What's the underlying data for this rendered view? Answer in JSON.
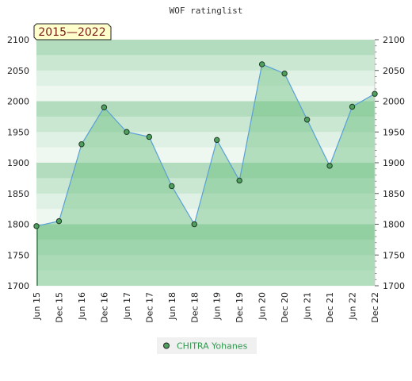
{
  "chart_data": {
    "type": "area",
    "title": "WOF ratinglist",
    "period_label": "2015—2022",
    "categories": [
      "Jun 15",
      "Dec 15",
      "Jun 16",
      "Dec 16",
      "Jun 17",
      "Dec 17",
      "Jun 18",
      "Dec 18",
      "Jun 19",
      "Dec 19",
      "Jun 20",
      "Dec 20",
      "Jun 21",
      "Dec 21",
      "Jun 22",
      "Dec 22"
    ],
    "series": [
      {
        "name": "CHITRA Yohanes",
        "values": [
          1797,
          1805,
          1930,
          1990,
          1950,
          1942,
          1862,
          1800,
          1937,
          1871,
          2060,
          2045,
          1970,
          1895,
          1991,
          2012
        ]
      }
    ],
    "ylim": [
      1700,
      2100
    ],
    "y_ticks": [
      1700,
      1750,
      1800,
      1850,
      1900,
      1950,
      2000,
      2050,
      2100
    ],
    "xlabel": "",
    "ylabel": "",
    "grid": true,
    "legend_position": "bottom-center",
    "colors": {
      "line": "#5aa0d8",
      "fill": "#6bbf7e",
      "marker": "#4fa05e",
      "band_dark": "#b2dcbd",
      "band_light": "#eef7f0",
      "period_bg": "#ffffcc"
    }
  }
}
